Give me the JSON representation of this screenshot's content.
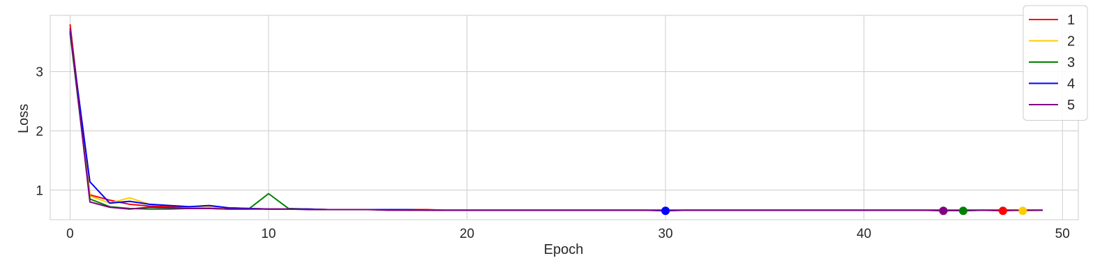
{
  "chart_data": {
    "type": "line",
    "title": "",
    "xlabel": "Epoch",
    "ylabel": "Loss",
    "xlim": [
      -1,
      50.8
    ],
    "ylim": [
      0.5,
      3.95
    ],
    "xticks": [
      0,
      10,
      20,
      30,
      40,
      50
    ],
    "yticks": [
      1,
      2,
      3
    ],
    "grid": true,
    "legend_position": "top-right",
    "x": [
      0,
      1,
      2,
      3,
      4,
      5,
      6,
      7,
      8,
      9,
      10,
      11,
      12,
      13,
      14,
      15,
      16,
      17,
      18,
      19,
      20,
      21,
      22,
      23,
      24,
      25,
      26,
      27,
      28,
      29,
      30,
      31,
      32,
      33,
      34,
      35,
      36,
      37,
      38,
      39,
      40,
      41,
      42,
      43,
      44,
      45,
      46,
      47,
      48,
      49
    ],
    "series": [
      {
        "name": "1",
        "color": "#ff0000",
        "values": [
          3.8,
          0.92,
          0.83,
          0.76,
          0.73,
          0.72,
          0.72,
          0.71,
          0.7,
          0.69,
          0.68,
          0.68,
          0.68,
          0.67,
          0.67,
          0.67,
          0.67,
          0.67,
          0.67,
          0.66,
          0.66,
          0.66,
          0.66,
          0.66,
          0.66,
          0.66,
          0.66,
          0.66,
          0.66,
          0.66,
          0.66,
          0.66,
          0.66,
          0.66,
          0.66,
          0.66,
          0.66,
          0.66,
          0.66,
          0.66,
          0.66,
          0.66,
          0.66,
          0.66,
          0.66,
          0.66,
          0.66,
          0.65,
          0.66,
          0.66
        ],
        "best_epoch": 47,
        "best_value": 0.65
      },
      {
        "name": "2",
        "color": "#ffcc00",
        "values": [
          3.7,
          0.9,
          0.78,
          0.87,
          0.76,
          0.74,
          0.72,
          0.71,
          0.7,
          0.69,
          0.68,
          0.68,
          0.68,
          0.67,
          0.67,
          0.67,
          0.67,
          0.66,
          0.66,
          0.66,
          0.66,
          0.66,
          0.66,
          0.66,
          0.66,
          0.66,
          0.66,
          0.66,
          0.66,
          0.66,
          0.66,
          0.66,
          0.66,
          0.66,
          0.66,
          0.66,
          0.66,
          0.66,
          0.66,
          0.66,
          0.66,
          0.66,
          0.66,
          0.66,
          0.66,
          0.66,
          0.66,
          0.66,
          0.65,
          0.66
        ],
        "best_epoch": 48,
        "best_value": 0.65
      },
      {
        "name": "3",
        "color": "#008000",
        "values": [
          3.65,
          0.85,
          0.72,
          0.69,
          0.68,
          0.68,
          0.69,
          0.69,
          0.68,
          0.68,
          0.94,
          0.69,
          0.68,
          0.67,
          0.67,
          0.67,
          0.67,
          0.67,
          0.66,
          0.66,
          0.66,
          0.66,
          0.66,
          0.66,
          0.66,
          0.66,
          0.66,
          0.66,
          0.66,
          0.66,
          0.66,
          0.66,
          0.66,
          0.66,
          0.66,
          0.66,
          0.66,
          0.66,
          0.66,
          0.66,
          0.66,
          0.66,
          0.66,
          0.66,
          0.66,
          0.65,
          0.66,
          0.66,
          0.66,
          0.66
        ],
        "best_epoch": 45,
        "best_value": 0.65
      },
      {
        "name": "4",
        "color": "#0000ff",
        "values": [
          3.68,
          1.14,
          0.78,
          0.81,
          0.76,
          0.74,
          0.72,
          0.74,
          0.7,
          0.69,
          0.68,
          0.68,
          0.68,
          0.67,
          0.67,
          0.67,
          0.67,
          0.67,
          0.66,
          0.66,
          0.66,
          0.66,
          0.66,
          0.66,
          0.66,
          0.66,
          0.66,
          0.66,
          0.66,
          0.66,
          0.65,
          0.66,
          0.66,
          0.66,
          0.66,
          0.66,
          0.66,
          0.66,
          0.66,
          0.66,
          0.66,
          0.66,
          0.66,
          0.66,
          0.66,
          0.66,
          0.66,
          0.66,
          0.66,
          0.66
        ],
        "best_epoch": 30,
        "best_value": 0.65
      },
      {
        "name": "5",
        "color": "#800080",
        "values": [
          3.73,
          0.8,
          0.71,
          0.68,
          0.71,
          0.7,
          0.69,
          0.69,
          0.68,
          0.68,
          0.68,
          0.68,
          0.67,
          0.67,
          0.67,
          0.67,
          0.66,
          0.66,
          0.66,
          0.66,
          0.66,
          0.66,
          0.66,
          0.66,
          0.66,
          0.66,
          0.66,
          0.66,
          0.66,
          0.66,
          0.66,
          0.66,
          0.66,
          0.66,
          0.66,
          0.66,
          0.66,
          0.66,
          0.66,
          0.66,
          0.66,
          0.66,
          0.66,
          0.66,
          0.65,
          0.66,
          0.66,
          0.66,
          0.66,
          0.66
        ],
        "best_epoch": 44,
        "best_value": 0.65
      }
    ]
  }
}
